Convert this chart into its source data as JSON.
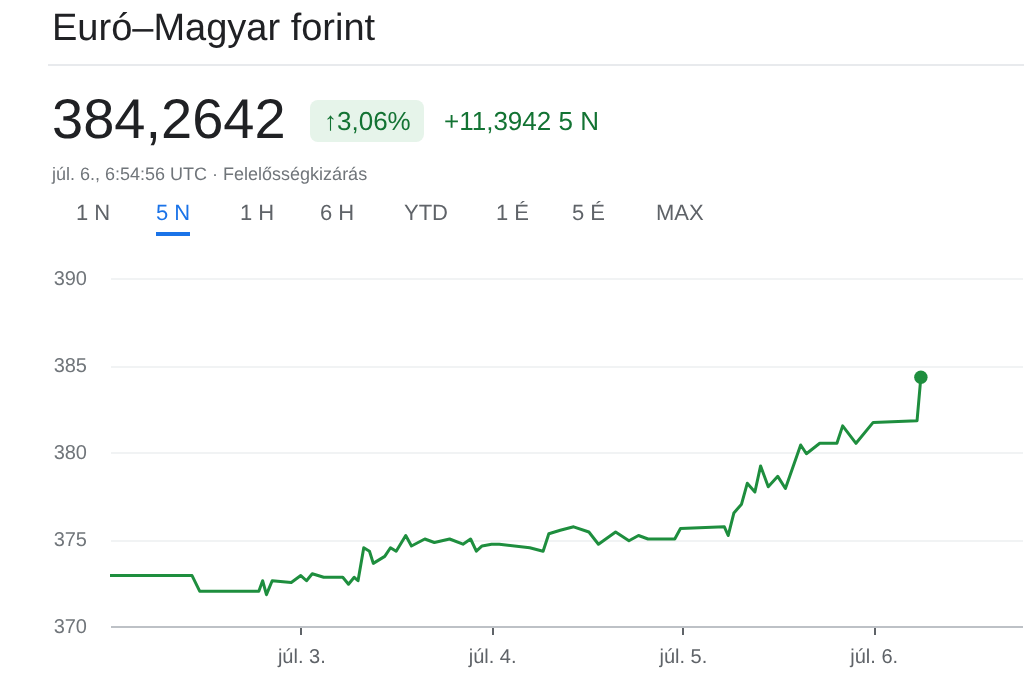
{
  "chart_data": {
    "type": "line",
    "title": "Euró–Magyar forint",
    "annotations": [
      "384,2642",
      "↑3,06%",
      "+11,3942 5 N",
      "júl. 6., 6:54:56 UTC · Felelősségkizárás",
      "1 N",
      "5 N",
      "1 H",
      "6 H",
      "YTD",
      "1 É",
      "5 É",
      "MAX"
    ],
    "xlim": [
      2.0,
      6.78
    ],
    "xticks": [
      {
        "value": 3,
        "label": "júl. 3."
      },
      {
        "value": 4,
        "label": "júl. 4."
      },
      {
        "value": 5,
        "label": "júl. 5."
      },
      {
        "value": 6,
        "label": "júl. 6."
      }
    ],
    "ylim": [
      370,
      390
    ],
    "yticks": [
      370,
      375,
      380,
      385,
      390
    ],
    "grid": "y",
    "line_style": "solid",
    "series": [
      {
        "color": "#1e8e3e",
        "marker": "none",
        "x": [
          2.0,
          2.43,
          2.47,
          2.78,
          2.8,
          2.82,
          2.85,
          2.95,
          3.0,
          3.03,
          3.06,
          3.12,
          3.22,
          3.25,
          3.28,
          3.3,
          3.33,
          3.36,
          3.38,
          3.44,
          3.47,
          3.5,
          3.55,
          3.58,
          3.65,
          3.7,
          3.78,
          3.85,
          3.89,
          3.92,
          3.95,
          4.0,
          4.04,
          4.2,
          4.27,
          4.3,
          4.36,
          4.43,
          4.51,
          4.56,
          4.65,
          4.72,
          4.77,
          4.82,
          4.96,
          4.99,
          5.22,
          5.24,
          5.27,
          5.31,
          5.34,
          5.38,
          5.41,
          5.45,
          5.5,
          5.54,
          5.62,
          5.65,
          5.72,
          5.81,
          5.84,
          5.91,
          6.0,
          6.23,
          6.25
        ],
        "values": [
          372.9,
          372.9,
          372.0,
          372.0,
          372.6,
          371.8,
          372.6,
          372.5,
          372.9,
          372.6,
          373.0,
          372.8,
          372.8,
          372.4,
          372.8,
          372.6,
          374.5,
          374.3,
          373.6,
          374.0,
          374.5,
          374.3,
          375.2,
          374.6,
          375.0,
          374.8,
          375.0,
          374.7,
          375.0,
          374.3,
          374.6,
          374.7,
          374.7,
          374.5,
          374.3,
          375.3,
          375.5,
          375.7,
          375.4,
          374.7,
          375.4,
          374.9,
          375.2,
          375.0,
          375.0,
          375.6,
          375.7,
          375.2,
          376.5,
          377.0,
          378.2,
          377.7,
          379.2,
          378.0,
          378.6,
          377.9,
          380.4,
          379.9,
          380.5,
          380.5,
          381.5,
          380.5,
          381.7,
          381.8,
          384.3
        ]
      },
      {
        "type": "scatter",
        "color": "#1e8e3e",
        "marker": "circle",
        "x": [
          6.25
        ],
        "values": [
          384.3
        ]
      }
    ]
  }
}
